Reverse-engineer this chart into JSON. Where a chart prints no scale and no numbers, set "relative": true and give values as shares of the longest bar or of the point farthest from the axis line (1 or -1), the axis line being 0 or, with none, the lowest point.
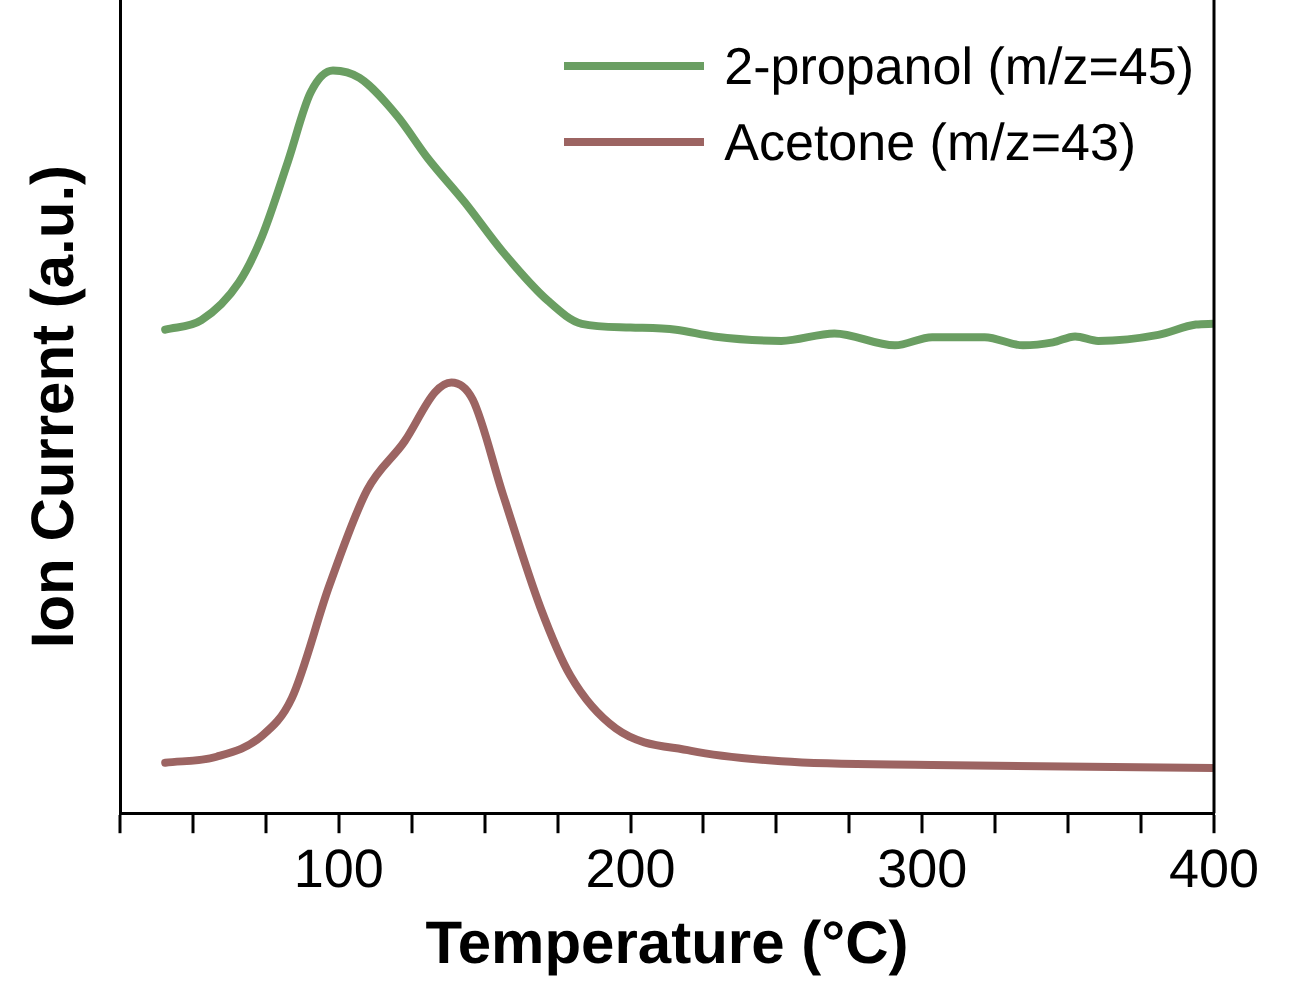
{
  "chart_data": {
    "type": "line",
    "xlabel": "Temperature (°C)",
    "ylabel": "Ion Current (a.u.)",
    "relative": true,
    "grid": false,
    "legend": "top right",
    "marker": "none",
    "line_style": "solid",
    "xlim": [
      25,
      400
    ],
    "xticks": [
      {
        "value": 25,
        "label": null
      },
      {
        "value": 50,
        "label": null
      },
      {
        "value": 75,
        "label": null
      },
      100,
      {
        "value": 125,
        "label": null
      },
      {
        "value": 150,
        "label": null
      },
      {
        "value": 175,
        "label": null
      },
      200,
      {
        "value": 225,
        "label": null
      },
      {
        "value": 250,
        "label": null
      },
      {
        "value": 275,
        "label": null
      },
      300,
      {
        "value": 325,
        "label": null
      },
      {
        "value": 350,
        "label": null
      },
      {
        "value": 375,
        "label": null
      },
      400
    ],
    "series": [
      {
        "name": "2-propanol (m/z=45)",
        "color": "#6a9e62",
        "x": [
          40.5,
          52.9,
          65.8,
          73.6,
          82.6,
          90.3,
          98,
          107.1,
          120,
          130.3,
          143.3,
          156.2,
          171.7,
          183.3,
          200,
          215.6,
          228.6,
          251.7,
          269.9,
          290.6,
          303.4,
          321.4,
          334.5,
          344.8,
          352.4,
          360.3,
          380.9,
          393.8,
          399.8
        ],
        "values": [
          0.651,
          0.664,
          0.715,
          0.776,
          0.878,
          0.97,
          1.0,
          0.99,
          0.939,
          0.883,
          0.822,
          0.756,
          0.69,
          0.659,
          0.654,
          0.651,
          0.642,
          0.636,
          0.646,
          0.63,
          0.641,
          0.641,
          0.63,
          0.634,
          0.642,
          0.636,
          0.644,
          0.658,
          0.659
        ]
      },
      {
        "name": "Acetone (m/z=43)",
        "color": "#9c6462",
        "x": [
          40.5,
          58.1,
          73.6,
          83.9,
          96.8,
          109.7,
          122.6,
          133,
          138.6,
          145.9,
          156.2,
          169.1,
          179.4,
          195,
          220.8,
          251.7,
          303.4,
          399.8
        ],
        "values": [
          0.068,
          0.076,
          0.104,
          0.155,
          0.307,
          0.435,
          0.501,
          0.567,
          0.58,
          0.557,
          0.43,
          0.277,
          0.185,
          0.114,
          0.084,
          0.07,
          0.065,
          0.061
        ]
      }
    ]
  }
}
